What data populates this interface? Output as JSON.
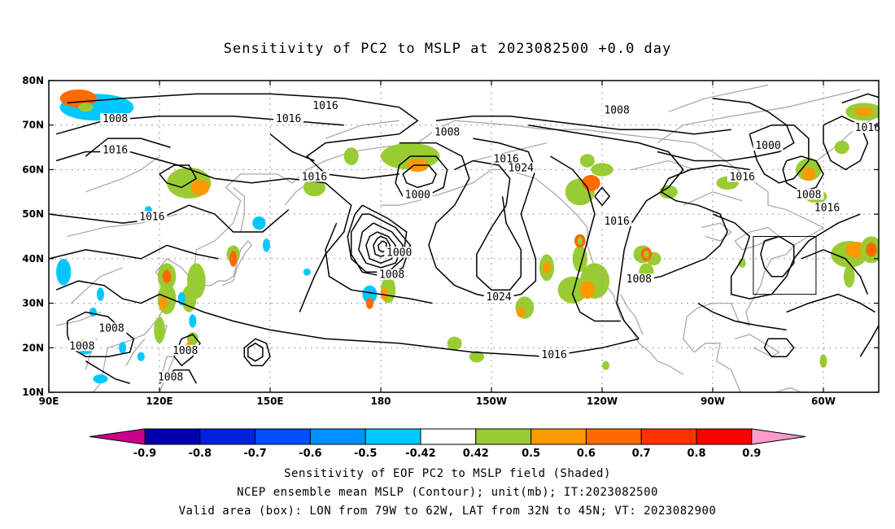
{
  "title": "Sensitivity of PC2 to MSLP at 2023082500 +0.0 day",
  "map": {
    "lat_ticks": [
      "80N",
      "70N",
      "60N",
      "50N",
      "40N",
      "30N",
      "20N",
      "10N"
    ],
    "lon_ticks": [
      "90E",
      "120E",
      "150E",
      "180",
      "150W",
      "120W",
      "90W",
      "60W"
    ],
    "lat_range": [
      10,
      80
    ],
    "lon_range_east": [
      90,
      315
    ],
    "valid_box": {
      "lon": [
        -79,
        -62
      ],
      "lat": [
        32,
        45
      ]
    },
    "contour_labels": [
      {
        "text": "1016",
        "lon": 165,
        "lat": 74
      },
      {
        "text": "1016",
        "lon": 155,
        "lat": 71
      },
      {
        "text": "1008",
        "lon": 108,
        "lat": 71
      },
      {
        "text": "1016",
        "lon": 108,
        "lat": 64
      },
      {
        "text": "1016",
        "lon": 162,
        "lat": 58
      },
      {
        "text": "1016",
        "lon": 118,
        "lat": 49
      },
      {
        "text": "1008",
        "lon": 198,
        "lat": 68
      },
      {
        "text": "1000",
        "lon": 190,
        "lat": 54
      },
      {
        "text": "1016",
        "lon": 214,
        "lat": 62
      },
      {
        "text": "1024",
        "lon": 218,
        "lat": 60
      },
      {
        "text": "1000",
        "lon": 185,
        "lat": 41
      },
      {
        "text": "1008",
        "lon": 183,
        "lat": 36
      },
      {
        "text": "1024",
        "lon": 212,
        "lat": 31
      },
      {
        "text": "1016",
        "lon": 227,
        "lat": 18
      },
      {
        "text": "1008",
        "lon": 250,
        "lat": 35
      },
      {
        "text": "1016",
        "lon": 244,
        "lat": 48
      },
      {
        "text": "1008",
        "lon": 244,
        "lat": 73
      },
      {
        "text": "1000",
        "lon": 285,
        "lat": 65
      },
      {
        "text": "1016",
        "lon": 278,
        "lat": 58
      },
      {
        "text": "1008",
        "lon": 296,
        "lat": 54
      },
      {
        "text": "1016",
        "lon": 301,
        "lat": 51
      },
      {
        "text": "1016",
        "lon": 312,
        "lat": 69
      },
      {
        "text": "1008",
        "lon": 107,
        "lat": 24
      },
      {
        "text": "1008",
        "lon": 99,
        "lat": 20
      },
      {
        "text": "1008",
        "lon": 127,
        "lat": 19
      },
      {
        "text": "1008",
        "lon": 123,
        "lat": 13
      }
    ]
  },
  "colorbar": {
    "labels": [
      "-0.9",
      "-0.8",
      "-0.7",
      "-0.6",
      "-0.5",
      "-0.42",
      "0.42",
      "0.5",
      "0.6",
      "0.7",
      "0.8",
      "0.9"
    ],
    "colors": [
      "#0000aa",
      "#0022dd",
      "#0050ff",
      "#0090ff",
      "#00c8ff",
      "#ffffff",
      "#99cc33",
      "#ff9900",
      "#ff6a00",
      "#ff3300",
      "#ff0000"
    ],
    "left_arrow_color": "#cc0088",
    "right_arrow_color": "#ff99cc"
  },
  "captions": {
    "line1": "Sensitivity of EOF PC2 to MSLP field (Shaded)",
    "line2": "NCEP ensemble mean MSLP (Contour); unit(mb); IT:2023082500",
    "line3": "Valid area (box): LON from 79W to 62W, LAT from 32N to 45N; VT: 2023082900"
  }
}
